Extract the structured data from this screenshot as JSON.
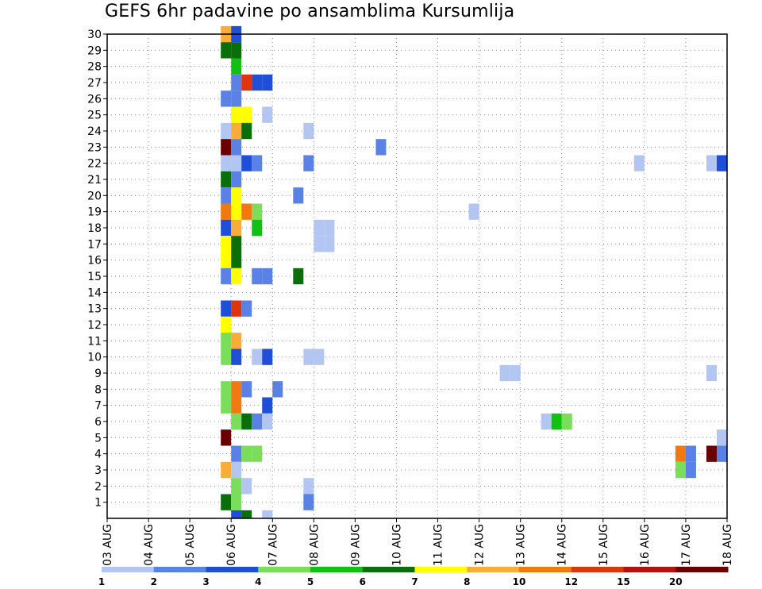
{
  "chart_data": {
    "type": "heatmap",
    "title": "GEFS 6hr padavine po ansamblima Kursumlija",
    "xlabel": "",
    "ylabel": "",
    "y_ticks": [
      "1",
      "2",
      "3",
      "4",
      "5",
      "6",
      "7",
      "8",
      "9",
      "10",
      "11",
      "12",
      "13",
      "14",
      "15",
      "16",
      "17",
      "18",
      "19",
      "20",
      "21",
      "22",
      "23",
      "24",
      "25",
      "26",
      "27",
      "28",
      "29",
      "30"
    ],
    "y_range": [
      0,
      30
    ],
    "x_ticks": [
      "03 AUG",
      "04 AUG",
      "05 AUG",
      "06 AUG",
      "07 AUG",
      "08 AUG",
      "09 AUG",
      "10 AUG",
      "11 AUG",
      "12 AUG",
      "13 AUG",
      "14 AUG",
      "15 AUG",
      "16 AUG",
      "17 AUG",
      "18 AUG"
    ],
    "x_range_hours": [
      0,
      360
    ],
    "time_step_hours": 6,
    "grid": true,
    "legend": {
      "placement": "bottom",
      "labels": [
        "1",
        "2",
        "3",
        "4",
        "5",
        "6",
        "7",
        "8",
        "10",
        "12",
        "15",
        "20"
      ],
      "colors": [
        "#b3c6f2",
        "#5a82e6",
        "#1f4fd9",
        "#7ade5a",
        "#11c111",
        "#0a6e0a",
        "#ffff00",
        "#f7ad38",
        "#f2790f",
        "#e0340f",
        "#b80f0f",
        "#6b0000"
      ]
    },
    "cells": [
      {
        "member": 30,
        "hour": 66,
        "level": 8
      },
      {
        "member": 30,
        "hour": 72,
        "level": 3
      },
      {
        "member": 29,
        "hour": 66,
        "level": 6
      },
      {
        "member": 29,
        "hour": 72,
        "level": 6
      },
      {
        "member": 28,
        "hour": 72,
        "level": 5
      },
      {
        "member": 27,
        "hour": 72,
        "level": 2
      },
      {
        "member": 27,
        "hour": 78,
        "level": 10
      },
      {
        "member": 27,
        "hour": 84,
        "level": 3
      },
      {
        "member": 27,
        "hour": 90,
        "level": 3
      },
      {
        "member": 26,
        "hour": 66,
        "level": 2
      },
      {
        "member": 26,
        "hour": 72,
        "level": 2
      },
      {
        "member": 25,
        "hour": 72,
        "level": 7
      },
      {
        "member": 25,
        "hour": 78,
        "level": 7
      },
      {
        "member": 25,
        "hour": 90,
        "level": 1
      },
      {
        "member": 24,
        "hour": 66,
        "level": 1
      },
      {
        "member": 24,
        "hour": 72,
        "level": 8
      },
      {
        "member": 24,
        "hour": 78,
        "level": 6
      },
      {
        "member": 24,
        "hour": 114,
        "level": 1
      },
      {
        "member": 23,
        "hour": 66,
        "level": 12
      },
      {
        "member": 23,
        "hour": 72,
        "level": 2
      },
      {
        "member": 23,
        "hour": 156,
        "level": 2
      },
      {
        "member": 22,
        "hour": 66,
        "level": 1
      },
      {
        "member": 22,
        "hour": 72,
        "level": 1
      },
      {
        "member": 22,
        "hour": 78,
        "level": 3
      },
      {
        "member": 22,
        "hour": 84,
        "level": 2
      },
      {
        "member": 22,
        "hour": 114,
        "level": 2
      },
      {
        "member": 22,
        "hour": 306,
        "level": 1
      },
      {
        "member": 22,
        "hour": 348,
        "level": 1
      },
      {
        "member": 22,
        "hour": 354,
        "level": 3
      },
      {
        "member": 21,
        "hour": 66,
        "level": 6
      },
      {
        "member": 21,
        "hour": 72,
        "level": 2
      },
      {
        "member": 20,
        "hour": 66,
        "level": 2
      },
      {
        "member": 20,
        "hour": 72,
        "level": 7
      },
      {
        "member": 20,
        "hour": 108,
        "level": 2
      },
      {
        "member": 19,
        "hour": 66,
        "level": 9
      },
      {
        "member": 19,
        "hour": 72,
        "level": 7
      },
      {
        "member": 19,
        "hour": 78,
        "level": 9
      },
      {
        "member": 19,
        "hour": 84,
        "level": 4
      },
      {
        "member": 19,
        "hour": 210,
        "level": 1
      },
      {
        "member": 18,
        "hour": 66,
        "level": 3
      },
      {
        "member": 18,
        "hour": 72,
        "level": 8
      },
      {
        "member": 18,
        "hour": 84,
        "level": 5
      },
      {
        "member": 18,
        "hour": 120,
        "level": 1
      },
      {
        "member": 18,
        "hour": 126,
        "level": 1
      },
      {
        "member": 17,
        "hour": 66,
        "level": 7
      },
      {
        "member": 17,
        "hour": 72,
        "level": 6
      },
      {
        "member": 17,
        "hour": 120,
        "level": 1
      },
      {
        "member": 17,
        "hour": 126,
        "level": 1
      },
      {
        "member": 16,
        "hour": 66,
        "level": 7
      },
      {
        "member": 16,
        "hour": 72,
        "level": 6
      },
      {
        "member": 15,
        "hour": 66,
        "level": 2
      },
      {
        "member": 15,
        "hour": 72,
        "level": 7
      },
      {
        "member": 15,
        "hour": 84,
        "level": 2
      },
      {
        "member": 15,
        "hour": 90,
        "level": 2
      },
      {
        "member": 15,
        "hour": 108,
        "level": 6
      },
      {
        "member": 13,
        "hour": 66,
        "level": 3
      },
      {
        "member": 13,
        "hour": 72,
        "level": 10
      },
      {
        "member": 13,
        "hour": 78,
        "level": 2
      },
      {
        "member": 12,
        "hour": 66,
        "level": 7
      },
      {
        "member": 11,
        "hour": 66,
        "level": 4
      },
      {
        "member": 11,
        "hour": 72,
        "level": 8
      },
      {
        "member": 10,
        "hour": 66,
        "level": 4
      },
      {
        "member": 10,
        "hour": 72,
        "level": 3
      },
      {
        "member": 10,
        "hour": 84,
        "level": 1
      },
      {
        "member": 10,
        "hour": 90,
        "level": 3
      },
      {
        "member": 10,
        "hour": 114,
        "level": 1
      },
      {
        "member": 10,
        "hour": 120,
        "level": 1
      },
      {
        "member": 9,
        "hour": 228,
        "level": 1
      },
      {
        "member": 9,
        "hour": 234,
        "level": 1
      },
      {
        "member": 9,
        "hour": 348,
        "level": 1
      },
      {
        "member": 8,
        "hour": 66,
        "level": 4
      },
      {
        "member": 8,
        "hour": 72,
        "level": 9
      },
      {
        "member": 8,
        "hour": 78,
        "level": 2
      },
      {
        "member": 8,
        "hour": 96,
        "level": 2
      },
      {
        "member": 7,
        "hour": 66,
        "level": 4
      },
      {
        "member": 7,
        "hour": 72,
        "level": 9
      },
      {
        "member": 7,
        "hour": 90,
        "level": 3
      },
      {
        "member": 6,
        "hour": 72,
        "level": 4
      },
      {
        "member": 6,
        "hour": 78,
        "level": 6
      },
      {
        "member": 6,
        "hour": 84,
        "level": 2
      },
      {
        "member": 6,
        "hour": 90,
        "level": 1
      },
      {
        "member": 6,
        "hour": 252,
        "level": 1
      },
      {
        "member": 6,
        "hour": 258,
        "level": 5
      },
      {
        "member": 6,
        "hour": 264,
        "level": 4
      },
      {
        "member": 5,
        "hour": 66,
        "level": 12
      },
      {
        "member": 5,
        "hour": 354,
        "level": 1
      },
      {
        "member": 4,
        "hour": 72,
        "level": 2
      },
      {
        "member": 4,
        "hour": 78,
        "level": 4
      },
      {
        "member": 4,
        "hour": 84,
        "level": 4
      },
      {
        "member": 4,
        "hour": 330,
        "level": 9
      },
      {
        "member": 4,
        "hour": 336,
        "level": 2
      },
      {
        "member": 4,
        "hour": 348,
        "level": 12
      },
      {
        "member": 4,
        "hour": 354,
        "level": 2
      },
      {
        "member": 3,
        "hour": 66,
        "level": 8
      },
      {
        "member": 3,
        "hour": 72,
        "level": 1
      },
      {
        "member": 3,
        "hour": 330,
        "level": 4
      },
      {
        "member": 3,
        "hour": 336,
        "level": 2
      },
      {
        "member": 2,
        "hour": 72,
        "level": 4
      },
      {
        "member": 2,
        "hour": 78,
        "level": 1
      },
      {
        "member": 2,
        "hour": 114,
        "level": 1
      },
      {
        "member": 1,
        "hour": 66,
        "level": 6
      },
      {
        "member": 1,
        "hour": 72,
        "level": 4
      },
      {
        "member": 1,
        "hour": 114,
        "level": 2
      },
      {
        "member": 0,
        "hour": 72,
        "level": 3
      },
      {
        "member": 0,
        "hour": 78,
        "level": 6
      },
      {
        "member": 0,
        "hour": 90,
        "level": 1
      }
    ]
  }
}
